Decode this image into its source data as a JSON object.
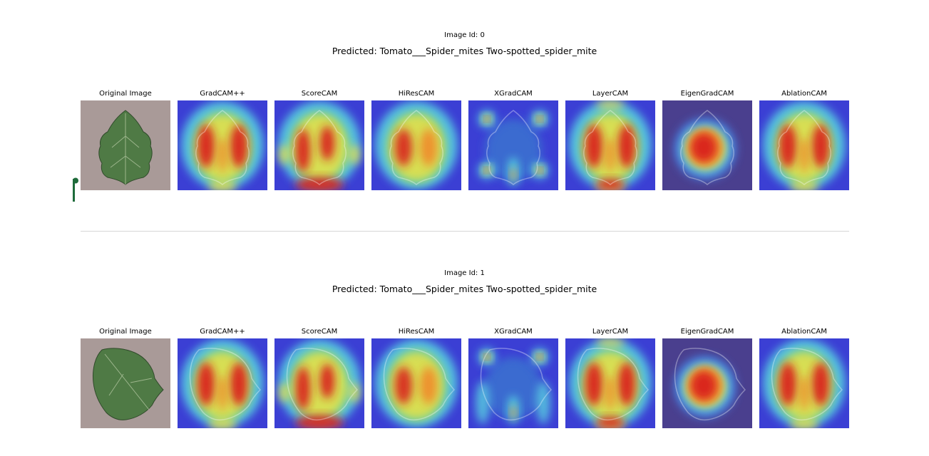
{
  "colors": {
    "background": "#ffffff",
    "divider": "#d6d6d6",
    "marker": "#1e6b3a",
    "heatmap_low": "#3b3fd4",
    "heatmap_high": "#d9201a",
    "leaf": "#4f7a45",
    "paper": "#a99a98"
  },
  "panel_titles": [
    "Original Image",
    "GradCAM++",
    "ScoreCAM",
    "HiResCAM",
    "XGradCAM",
    "LayerCAM",
    "EigenGradCAM",
    "AblationCAM"
  ],
  "panel_icons": [
    "leaf-image-icon",
    "heatmap-overlay-icon"
  ],
  "rows": [
    {
      "image_id_label": "Image Id: 0",
      "predicted_label": "Predicted: Tomato___Spider_mites Two-spotted_spider_mite"
    },
    {
      "image_id_label": "Image Id: 1",
      "predicted_label": "Predicted: Tomato___Spider_mites Two-spotted_spider_mite"
    }
  ]
}
